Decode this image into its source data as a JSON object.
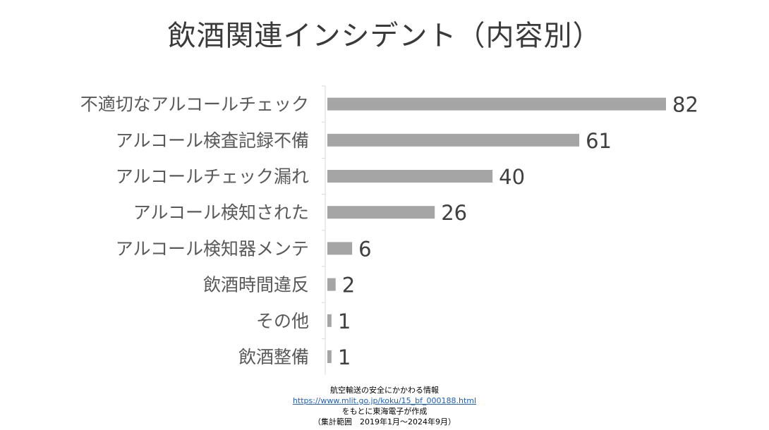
{
  "chart_data": {
    "type": "bar",
    "orientation": "horizontal",
    "title": "飲酒関連インシデント（内容別）",
    "categories": [
      "不適切なアルコールチェック",
      "アルコール検査記録不備",
      "アルコールチェック漏れ",
      "アルコール検知された",
      "アルコール検知器メンテ",
      "飲酒時間違反",
      "その他",
      "飲酒整備"
    ],
    "values": [
      82,
      61,
      40,
      26,
      6,
      2,
      1,
      1
    ],
    "xlim": [
      0,
      82
    ],
    "grid": false,
    "bar_color": "#a5a5a5"
  },
  "source": {
    "line1": "航空輸送の安全にかかわる情報",
    "url": "https://www.mlit.go.jp/koku/15_bf_000188.html",
    "line3": "をもとに東海電子が作成",
    "line4": "（集計範囲　2019年1月～2024年9月）"
  }
}
